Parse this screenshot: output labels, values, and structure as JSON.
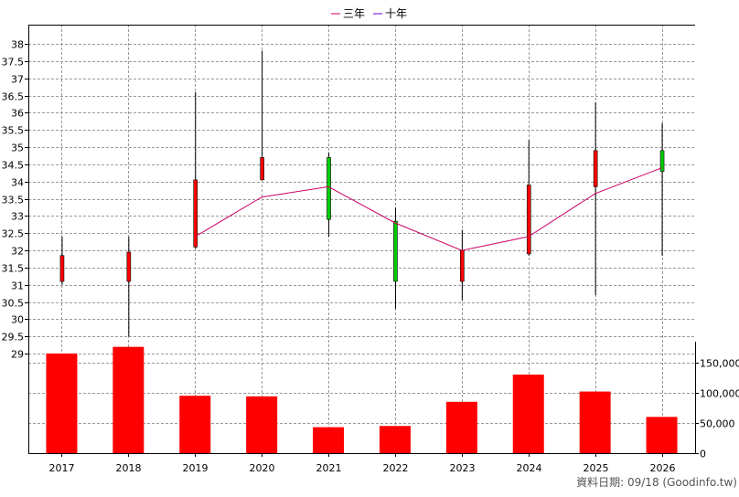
{
  "legend": {
    "items": [
      {
        "label": "三年",
        "color": "#cc0066"
      },
      {
        "label": "十年",
        "color": "#6600cc"
      }
    ]
  },
  "footer": {
    "source_text": "資料日期: 09/18  (Goodinfo.tw)"
  },
  "colors": {
    "up": "#ff0000",
    "down": "#00cc00",
    "volume": "#ff0000",
    "ma3": "#cc0066",
    "grid": "#999999"
  },
  "chart_data": [
    {
      "type": "candlestick",
      "y_ticks": [
        "29",
        "29.5",
        "30",
        "30.5",
        "31",
        "31.5",
        "32",
        "32.5",
        "33",
        "33.5",
        "34",
        "34.5",
        "35",
        "35.5",
        "36",
        "36.5",
        "37",
        "37.5",
        "38"
      ],
      "ylim": [
        28.95,
        38.4
      ],
      "grid": true,
      "legend_position": "top-center",
      "categories": [
        "2017",
        "2018",
        "2019",
        "2020",
        "2021",
        "2022",
        "2023",
        "2024",
        "2025",
        "2026"
      ],
      "candles": [
        {
          "year": "2017",
          "open": 31.1,
          "close": 31.85,
          "high": 32.4,
          "low": 31.0
        },
        {
          "year": "2018",
          "open": 31.1,
          "close": 31.95,
          "high": 32.4,
          "low": 29.5
        },
        {
          "year": "2019",
          "open": 32.1,
          "close": 34.05,
          "high": 36.6,
          "low": 32.05
        },
        {
          "year": "2020",
          "open": 34.05,
          "close": 34.7,
          "high": 37.8,
          "low": 34.05
        },
        {
          "year": "2021",
          "open": 34.7,
          "close": 32.9,
          "high": 34.85,
          "low": 32.4
        },
        {
          "year": "2022",
          "open": 32.85,
          "close": 31.1,
          "high": 33.25,
          "low": 30.3
        },
        {
          "year": "2023",
          "open": 31.1,
          "close": 32.0,
          "high": 32.6,
          "low": 30.55
        },
        {
          "year": "2024",
          "open": 31.9,
          "close": 33.9,
          "high": 35.2,
          "low": 31.85
        },
        {
          "year": "2025",
          "open": 33.85,
          "close": 34.9,
          "high": 36.3,
          "low": 30.7
        },
        {
          "year": "2026",
          "open": 34.9,
          "close": 34.3,
          "high": 35.7,
          "low": 31.85
        }
      ],
      "ma3": [
        {
          "year": "2019",
          "value": 32.4
        },
        {
          "year": "2020",
          "value": 33.55
        },
        {
          "year": "2021",
          "value": 33.85
        },
        {
          "year": "2022",
          "value": 32.8
        },
        {
          "year": "2023",
          "value": 32.0
        },
        {
          "year": "2024",
          "value": 32.4
        },
        {
          "year": "2025",
          "value": 33.65
        },
        {
          "year": "2026",
          "value": 34.4
        }
      ]
    },
    {
      "type": "bar",
      "categories": [
        "2017",
        "2018",
        "2019",
        "2020",
        "2021",
        "2022",
        "2023",
        "2024",
        "2025",
        "2026"
      ],
      "values": [
        165000,
        176000,
        95000,
        94000,
        43000,
        45000,
        85000,
        130000,
        102000,
        60000
      ],
      "y_ticks": [
        "0",
        "50,000",
        "100,000",
        "150,000"
      ],
      "ylim": [
        0,
        180000
      ],
      "grid": true
    }
  ]
}
